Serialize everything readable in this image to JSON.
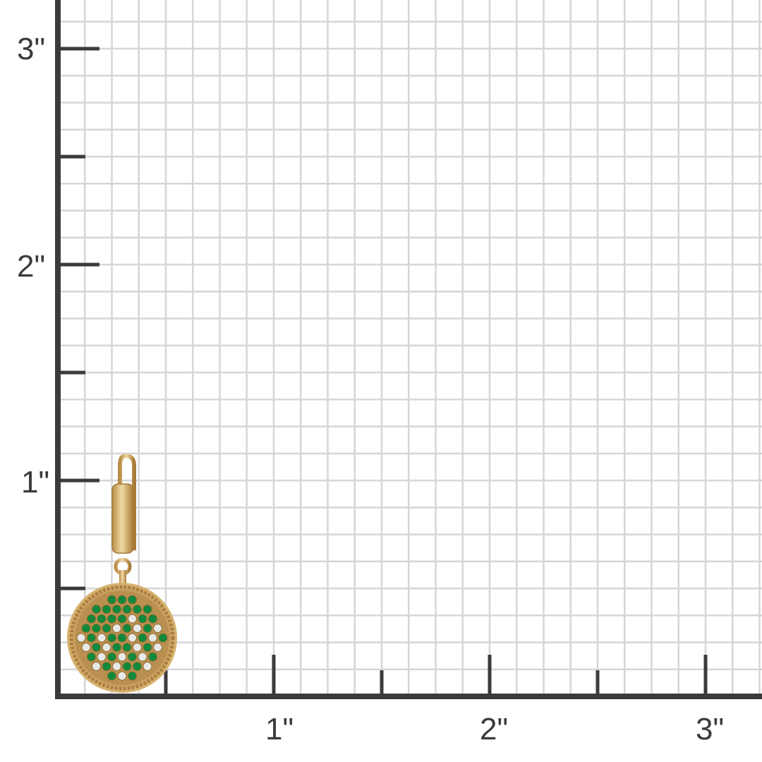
{
  "ruler": {
    "unit_symbol": "\"",
    "y_labels": [
      {
        "value": 3,
        "text": "3\""
      },
      {
        "value": 2,
        "text": "2\""
      },
      {
        "value": 1,
        "text": "1\""
      }
    ],
    "x_labels": [
      {
        "value": 1,
        "text": "1\""
      },
      {
        "value": 2,
        "text": "2\""
      },
      {
        "value": 3,
        "text": "3\""
      }
    ],
    "grid_divisions_per_inch": 8,
    "axis_color": "#3b3b3d",
    "grid_color": "#d6d6d8"
  },
  "product": {
    "name": "emerald-and-diamond-pave-disc-huggie-earring",
    "height_in": 1.1,
    "disc_diameter_in": 0.5,
    "metal_color": "#d6b06e",
    "stone_colors": [
      "#0f8a3c",
      "#e8e8e6"
    ]
  }
}
